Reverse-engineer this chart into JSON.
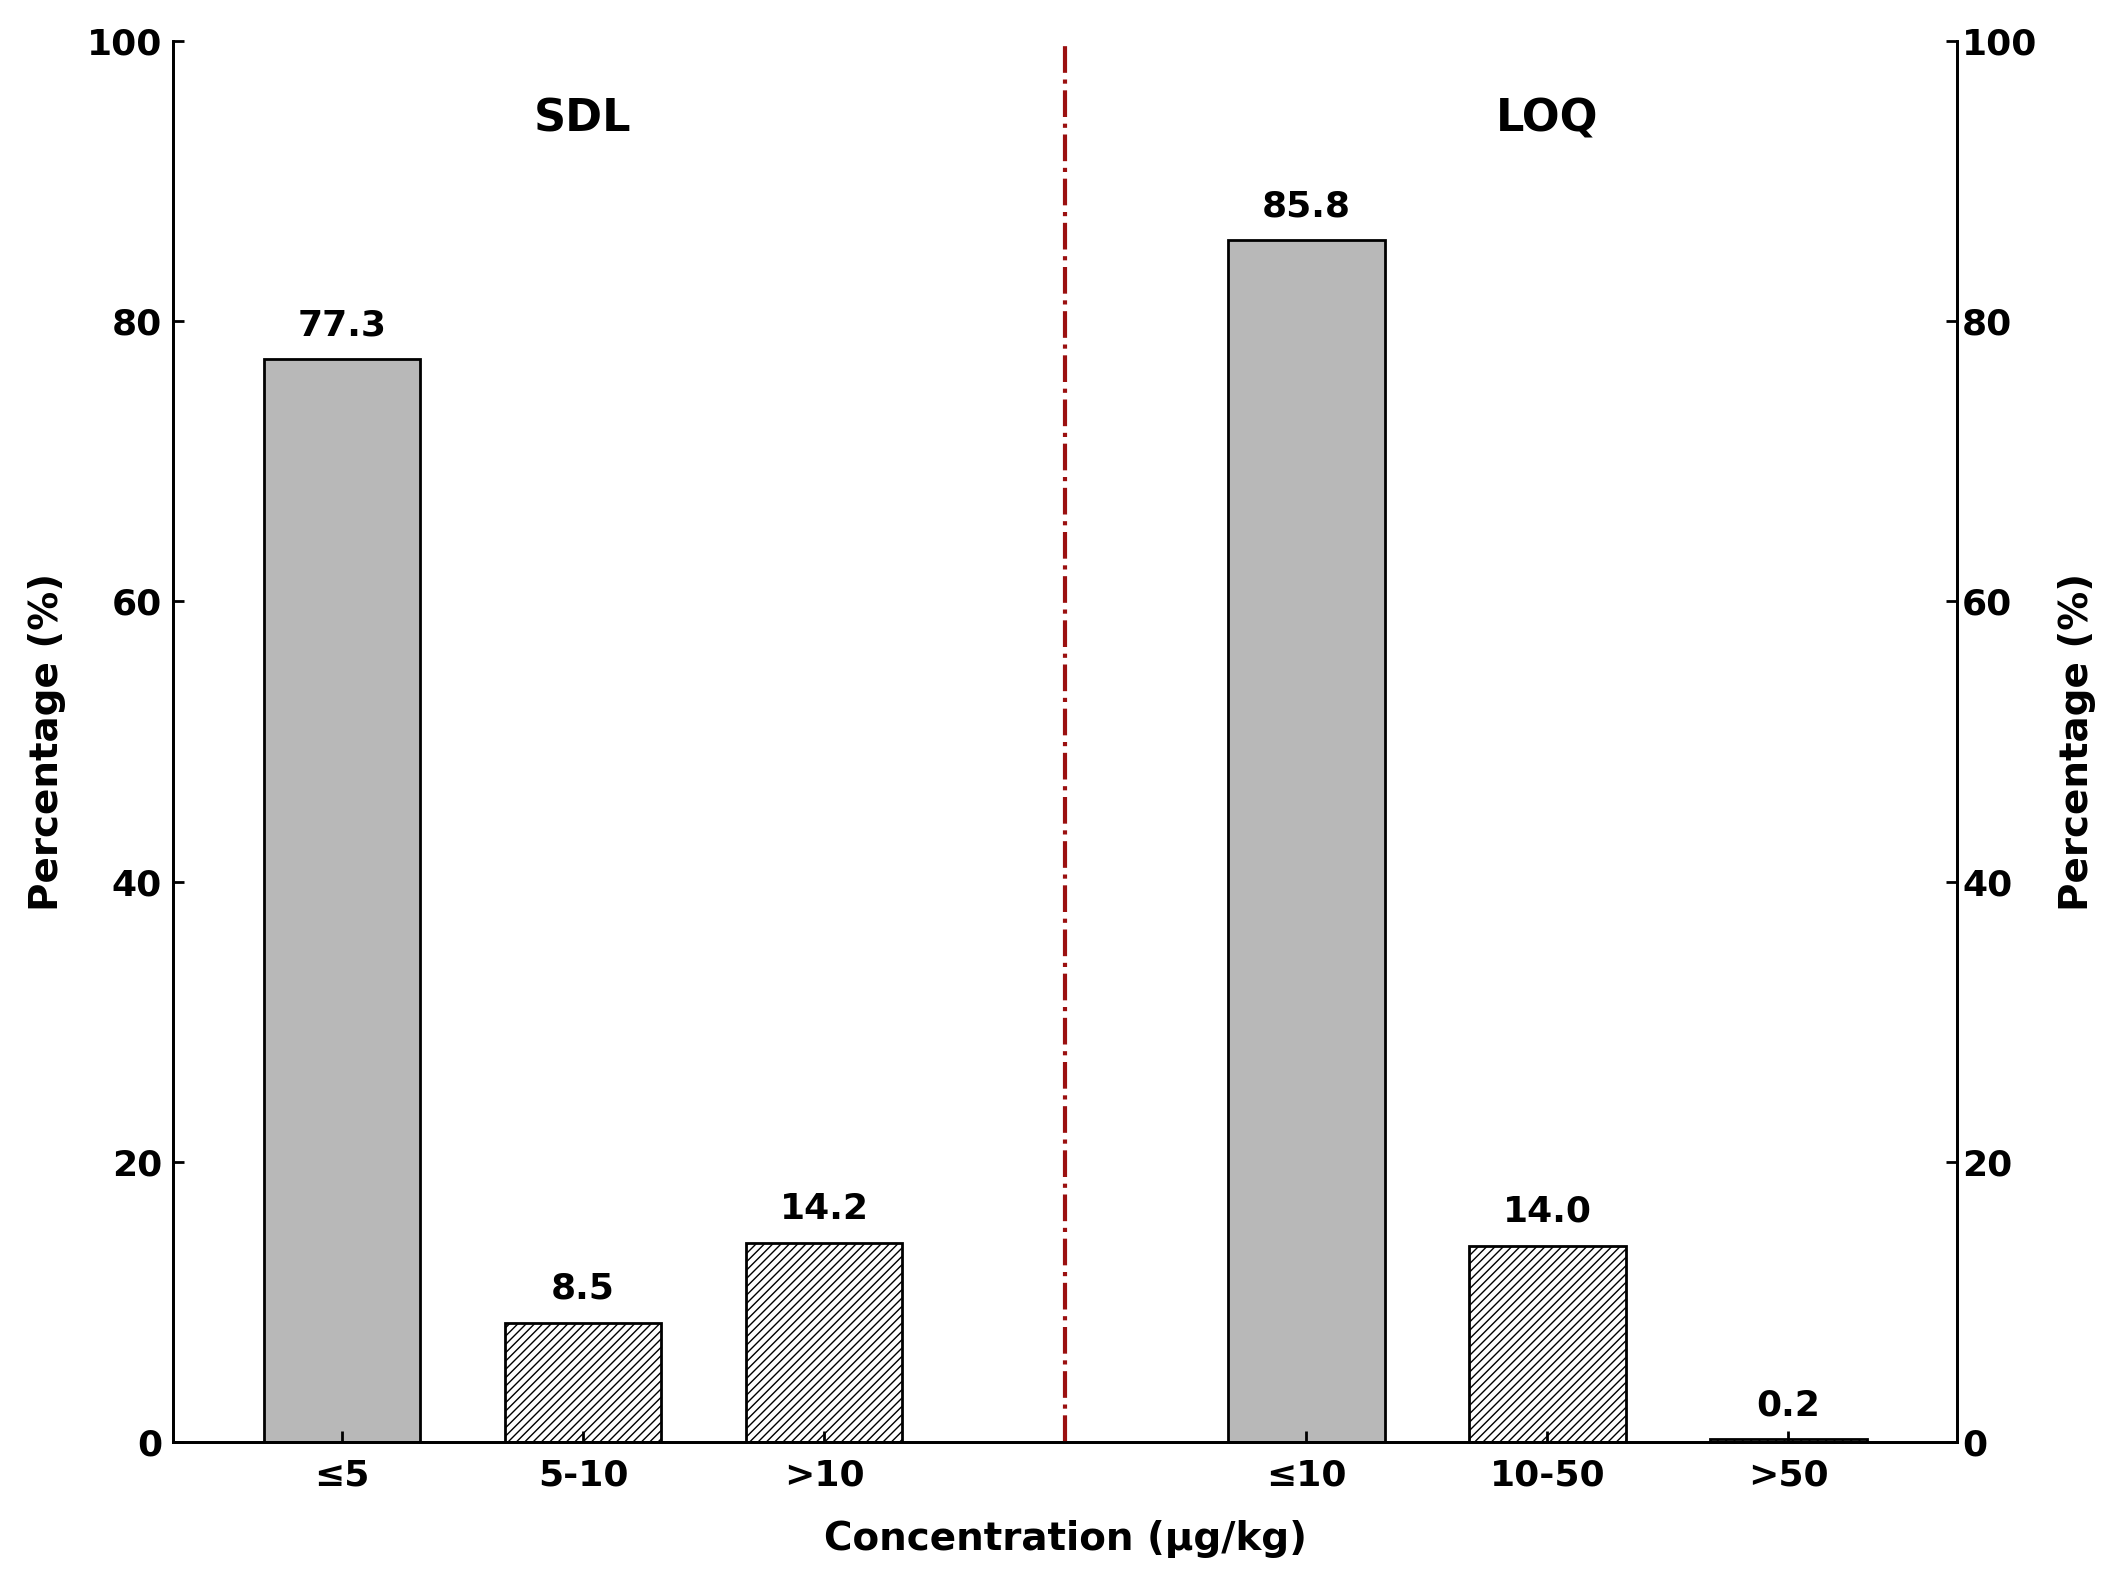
{
  "sdl_categories": [
    "≤5",
    "5-10",
    ">10"
  ],
  "sdl_values": [
    77.3,
    8.5,
    14.2
  ],
  "sdl_solid": [
    true,
    false,
    false
  ],
  "loq_categories": [
    "≤10",
    "10-50",
    ">50"
  ],
  "loq_values": [
    85.8,
    14.0,
    0.2
  ],
  "loq_solid": [
    true,
    false,
    false
  ],
  "sdl_label": "SDL",
  "loq_label": "LOQ",
  "ylabel_left": "Percentage (%)",
  "ylabel_right": "Percentage (%)",
  "xlabel": "Concentration (μg/kg)",
  "ylim": [
    0,
    100
  ],
  "yticks": [
    0,
    20,
    40,
    60,
    80,
    100
  ],
  "bar_color_solid": "#b8b8b8",
  "hatch_pattern": "////",
  "bar_edgecolor": "#000000",
  "divider_color": "#9b1010",
  "divider_style": "-.",
  "bar_width": 0.65,
  "label_fontsize": 28,
  "tick_fontsize": 26,
  "annotation_fontsize": 26,
  "section_label_fontsize": 32,
  "background_color": "#ffffff",
  "spine_linewidth": 2.0,
  "divider_linewidth": 3.0
}
